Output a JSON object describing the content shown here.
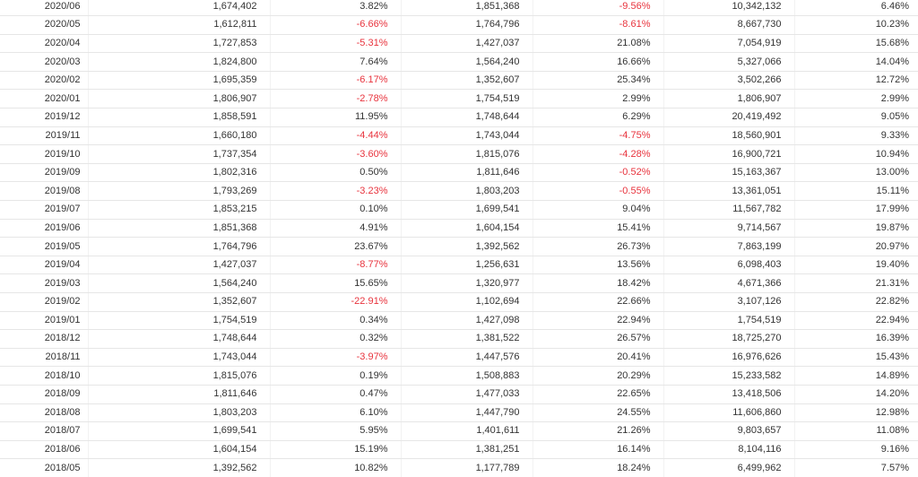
{
  "colors": {
    "negative": "#e8333d",
    "text": "#333333",
    "border": "#e6e6e6"
  },
  "rows": [
    {
      "date": "2020/06",
      "v1": "1,674,402",
      "p1": "3.82%",
      "v2": "1,851,368",
      "p2": "-9.56%",
      "v3": "10,342,132",
      "p3": "6.46%"
    },
    {
      "date": "2020/05",
      "v1": "1,612,811",
      "p1": "-6.66%",
      "v2": "1,764,796",
      "p2": "-8.61%",
      "v3": "8,667,730",
      "p3": "10.23%"
    },
    {
      "date": "2020/04",
      "v1": "1,727,853",
      "p1": "-5.31%",
      "v2": "1,427,037",
      "p2": "21.08%",
      "v3": "7,054,919",
      "p3": "15.68%"
    },
    {
      "date": "2020/03",
      "v1": "1,824,800",
      "p1": "7.64%",
      "v2": "1,564,240",
      "p2": "16.66%",
      "v3": "5,327,066",
      "p3": "14.04%"
    },
    {
      "date": "2020/02",
      "v1": "1,695,359",
      "p1": "-6.17%",
      "v2": "1,352,607",
      "p2": "25.34%",
      "v3": "3,502,266",
      "p3": "12.72%"
    },
    {
      "date": "2020/01",
      "v1": "1,806,907",
      "p1": "-2.78%",
      "v2": "1,754,519",
      "p2": "2.99%",
      "v3": "1,806,907",
      "p3": "2.99%"
    },
    {
      "date": "2019/12",
      "v1": "1,858,591",
      "p1": "11.95%",
      "v2": "1,748,644",
      "p2": "6.29%",
      "v3": "20,419,492",
      "p3": "9.05%"
    },
    {
      "date": "2019/11",
      "v1": "1,660,180",
      "p1": "-4.44%",
      "v2": "1,743,044",
      "p2": "-4.75%",
      "v3": "18,560,901",
      "p3": "9.33%"
    },
    {
      "date": "2019/10",
      "v1": "1,737,354",
      "p1": "-3.60%",
      "v2": "1,815,076",
      "p2": "-4.28%",
      "v3": "16,900,721",
      "p3": "10.94%"
    },
    {
      "date": "2019/09",
      "v1": "1,802,316",
      "p1": "0.50%",
      "v2": "1,811,646",
      "p2": "-0.52%",
      "v3": "15,163,367",
      "p3": "13.00%"
    },
    {
      "date": "2019/08",
      "v1": "1,793,269",
      "p1": "-3.23%",
      "v2": "1,803,203",
      "p2": "-0.55%",
      "v3": "13,361,051",
      "p3": "15.11%"
    },
    {
      "date": "2019/07",
      "v1": "1,853,215",
      "p1": "0.10%",
      "v2": "1,699,541",
      "p2": "9.04%",
      "v3": "11,567,782",
      "p3": "17.99%"
    },
    {
      "date": "2019/06",
      "v1": "1,851,368",
      "p1": "4.91%",
      "v2": "1,604,154",
      "p2": "15.41%",
      "v3": "9,714,567",
      "p3": "19.87%"
    },
    {
      "date": "2019/05",
      "v1": "1,764,796",
      "p1": "23.67%",
      "v2": "1,392,562",
      "p2": "26.73%",
      "v3": "7,863,199",
      "p3": "20.97%"
    },
    {
      "date": "2019/04",
      "v1": "1,427,037",
      "p1": "-8.77%",
      "v2": "1,256,631",
      "p2": "13.56%",
      "v3": "6,098,403",
      "p3": "19.40%"
    },
    {
      "date": "2019/03",
      "v1": "1,564,240",
      "p1": "15.65%",
      "v2": "1,320,977",
      "p2": "18.42%",
      "v3": "4,671,366",
      "p3": "21.31%"
    },
    {
      "date": "2019/02",
      "v1": "1,352,607",
      "p1": "-22.91%",
      "v2": "1,102,694",
      "p2": "22.66%",
      "v3": "3,107,126",
      "p3": "22.82%"
    },
    {
      "date": "2019/01",
      "v1": "1,754,519",
      "p1": "0.34%",
      "v2": "1,427,098",
      "p2": "22.94%",
      "v3": "1,754,519",
      "p3": "22.94%"
    },
    {
      "date": "2018/12",
      "v1": "1,748,644",
      "p1": "0.32%",
      "v2": "1,381,522",
      "p2": "26.57%",
      "v3": "18,725,270",
      "p3": "16.39%"
    },
    {
      "date": "2018/11",
      "v1": "1,743,044",
      "p1": "-3.97%",
      "v2": "1,447,576",
      "p2": "20.41%",
      "v3": "16,976,626",
      "p3": "15.43%"
    },
    {
      "date": "2018/10",
      "v1": "1,815,076",
      "p1": "0.19%",
      "v2": "1,508,883",
      "p2": "20.29%",
      "v3": "15,233,582",
      "p3": "14.89%"
    },
    {
      "date": "2018/09",
      "v1": "1,811,646",
      "p1": "0.47%",
      "v2": "1,477,033",
      "p2": "22.65%",
      "v3": "13,418,506",
      "p3": "14.20%"
    },
    {
      "date": "2018/08",
      "v1": "1,803,203",
      "p1": "6.10%",
      "v2": "1,447,790",
      "p2": "24.55%",
      "v3": "11,606,860",
      "p3": "12.98%"
    },
    {
      "date": "2018/07",
      "v1": "1,699,541",
      "p1": "5.95%",
      "v2": "1,401,611",
      "p2": "21.26%",
      "v3": "9,803,657",
      "p3": "11.08%"
    },
    {
      "date": "2018/06",
      "v1": "1,604,154",
      "p1": "15.19%",
      "v2": "1,381,251",
      "p2": "16.14%",
      "v3": "8,104,116",
      "p3": "9.16%"
    },
    {
      "date": "2018/05",
      "v1": "1,392,562",
      "p1": "10.82%",
      "v2": "1,177,789",
      "p2": "18.24%",
      "v3": "6,499,962",
      "p3": "7.57%"
    }
  ]
}
